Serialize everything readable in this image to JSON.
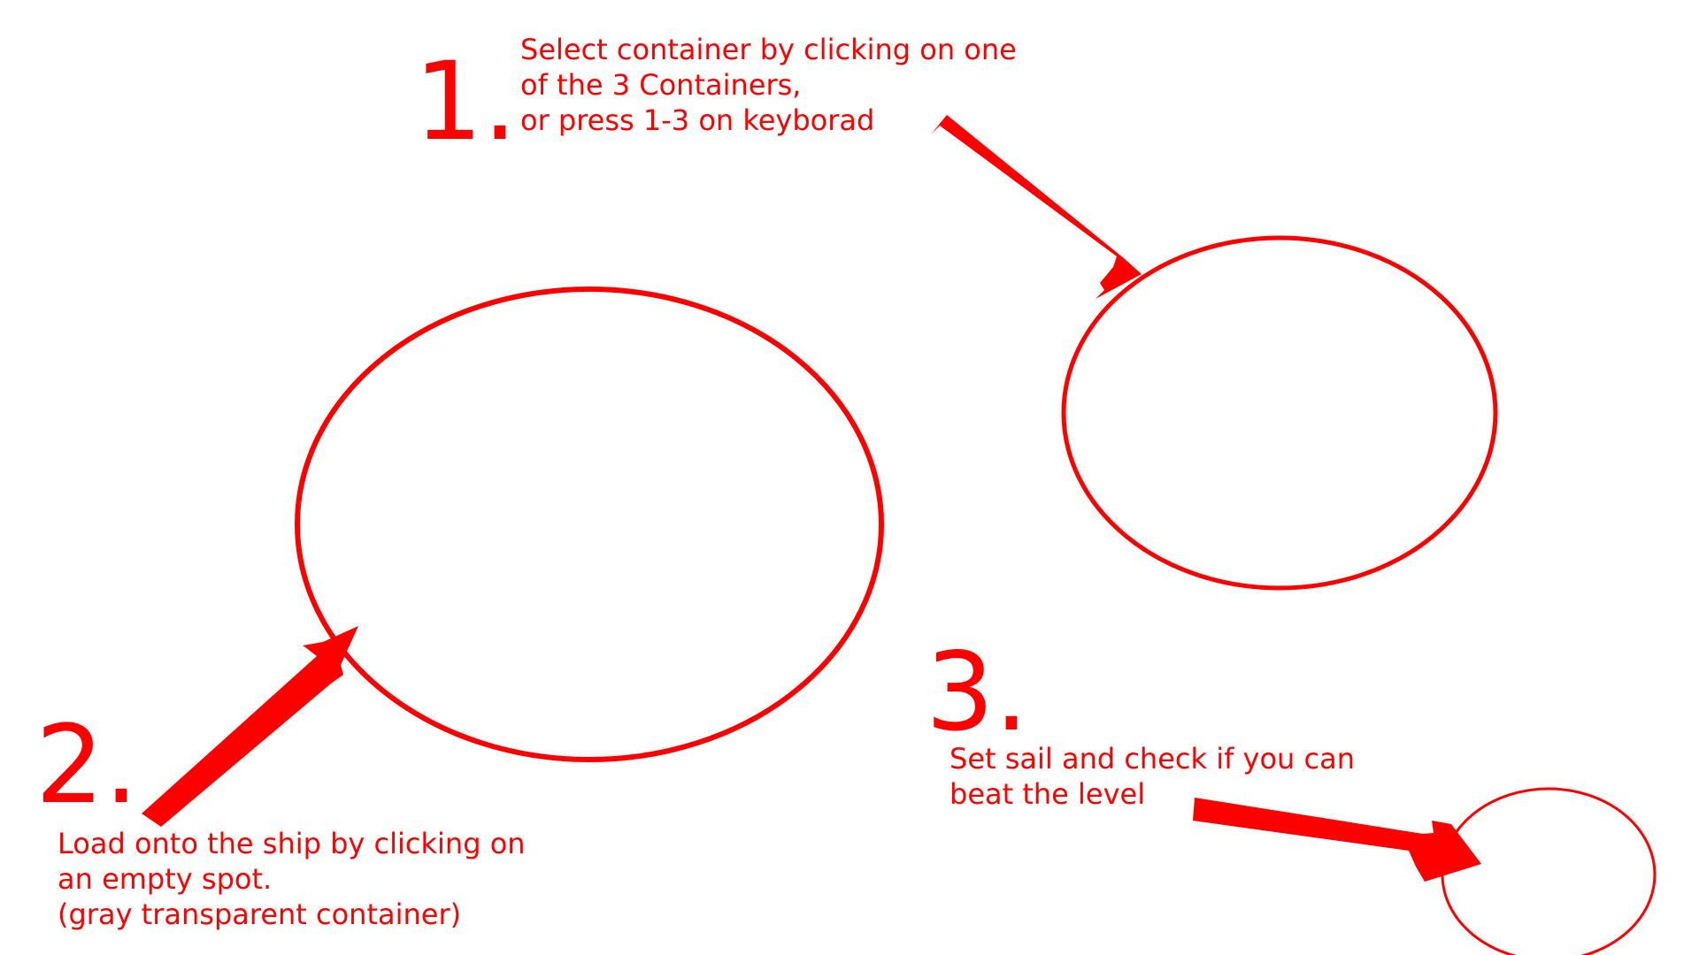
{
  "colors": {
    "annotation": "#ff0000",
    "background": "#ffffff"
  },
  "steps": [
    {
      "number": "1.",
      "lines": [
        "Select container by clicking on one",
        "of the 3 Containers,",
        "or press 1-3 on keyborad"
      ]
    },
    {
      "number": "2.",
      "lines": [
        "Load onto the ship by clicking on",
        "an empty spot.",
        "(gray transparent container)"
      ]
    },
    {
      "number": "3.",
      "lines": [
        "Set sail and check if you can",
        "beat the level"
      ]
    }
  ],
  "icons": {
    "highlight": "circle-outline",
    "pointer": "hand-drawn-arrow"
  }
}
